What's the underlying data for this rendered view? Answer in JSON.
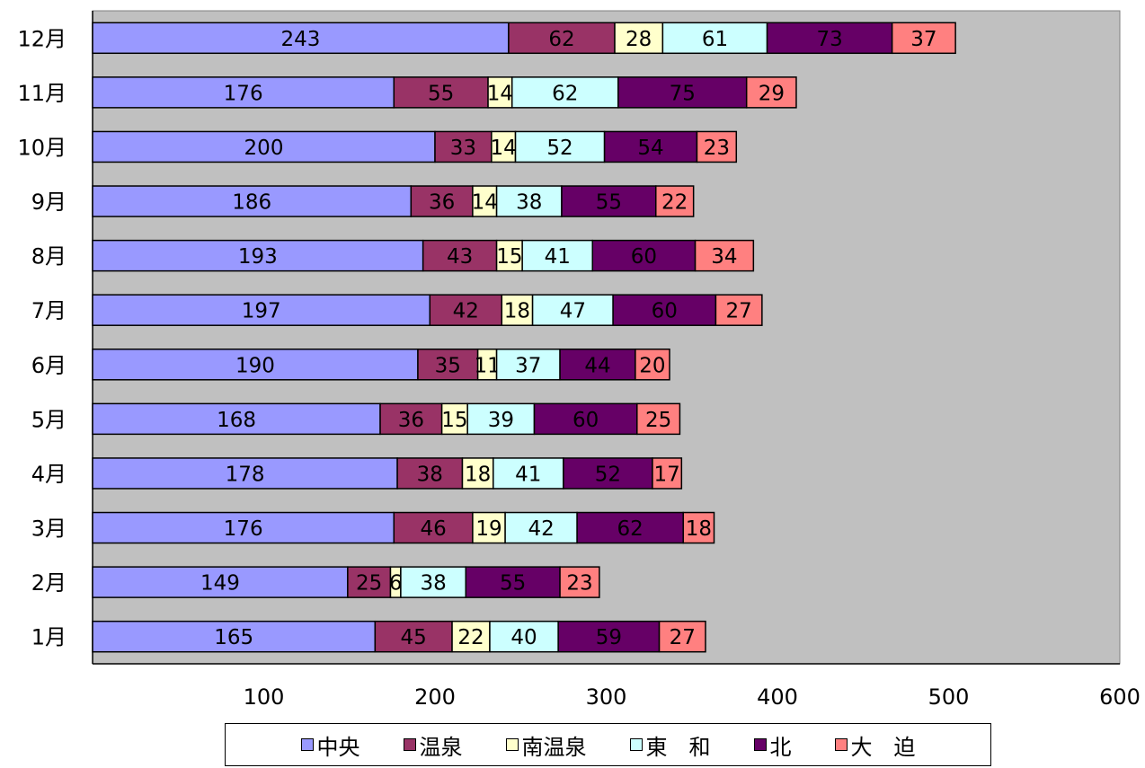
{
  "chart_data": {
    "type": "bar",
    "orientation": "horizontal",
    "stacked": true,
    "title": "",
    "xlabel": "",
    "ylabel": "",
    "xlim": [
      0,
      600
    ],
    "x_ticks": [
      100,
      200,
      300,
      400,
      500,
      600
    ],
    "x_tick_labels": [
      "100",
      "200",
      "300",
      "400",
      "500",
      "600"
    ],
    "categories": [
      "1月",
      "2月",
      "3月",
      "4月",
      "5月",
      "6月",
      "7月",
      "8月",
      "9月",
      "10月",
      "11月",
      "12月"
    ],
    "series": [
      {
        "name": "中央",
        "color": "#9999ff",
        "values": [
          165,
          149,
          176,
          178,
          168,
          190,
          197,
          193,
          186,
          200,
          176,
          243
        ]
      },
      {
        "name": "温泉",
        "color": "#993366",
        "values": [
          45,
          25,
          46,
          38,
          36,
          35,
          42,
          43,
          36,
          33,
          55,
          62
        ]
      },
      {
        "name": "南温泉",
        "color": "#ffffcc",
        "values": [
          22,
          6,
          19,
          18,
          15,
          11,
          18,
          15,
          14,
          14,
          14,
          28
        ]
      },
      {
        "name": "東　和",
        "color": "#ccffff",
        "values": [
          40,
          38,
          42,
          41,
          39,
          37,
          47,
          41,
          38,
          52,
          62,
          61
        ]
      },
      {
        "name": "北",
        "color": "#660066",
        "values": [
          59,
          55,
          62,
          52,
          60,
          44,
          60,
          60,
          55,
          54,
          75,
          73
        ]
      },
      {
        "name": "大　迫",
        "color": "#ff8080",
        "values": [
          27,
          23,
          18,
          17,
          25,
          20,
          27,
          34,
          22,
          23,
          29,
          37
        ]
      }
    ],
    "plot_background": "#c0c0c0",
    "grid": false,
    "data_labels": true,
    "legend_position": "bottom"
  }
}
